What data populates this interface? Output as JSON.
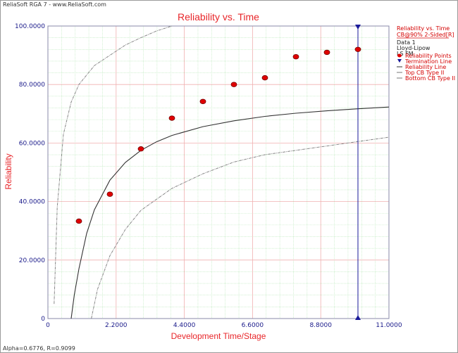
{
  "window": {
    "app_title": "ReliaSoft RGA 7 - www.ReliaSoft.com",
    "footer": "Alpha=0.6776, R=0.9099"
  },
  "legend": {
    "title": "Reliability vs. Time",
    "subtitle": "CB@90% 2-Sided[R]",
    "info": [
      "Data 1",
      "Lloyd-Lipow",
      "LS FM"
    ],
    "entries": [
      {
        "label": "Reliability Points",
        "symbol": "dot",
        "color": "#e00000"
      },
      {
        "label": "Termination Line",
        "symbol": "triangle",
        "color": "#1a1a9a"
      },
      {
        "label": "Reliability Line",
        "symbol": "line",
        "color": "#333333"
      },
      {
        "label": "Top CB Type II",
        "symbol": "line",
        "color": "#777777"
      },
      {
        "label": "Bottom CB Type II",
        "symbol": "line",
        "color": "#777777"
      }
    ]
  },
  "colors": {
    "title": "#e8262a",
    "tick_text": "#1a1a8a",
    "axis": "#1a1a8a",
    "grid_major": "#f0b0b0",
    "grid_minor": "#b8e8b8",
    "points": "#e00000",
    "termination": "#1a1a9a",
    "reliability_line": "#333333",
    "cb_lines": "#888888"
  },
  "chart_data": {
    "type": "scatter",
    "title": "Reliability vs. Time",
    "xlabel": "Development Time/Stage",
    "ylabel": "Reliability",
    "xlim": [
      0,
      11
    ],
    "ylim": [
      0,
      100
    ],
    "xticks": [
      "0",
      "2.2000",
      "4.4000",
      "6.6000",
      "8.8000",
      "11.0000"
    ],
    "yticks": [
      "0",
      "20.0000",
      "40.0000",
      "60.0000",
      "80.0000",
      "100.0000"
    ],
    "grid": true,
    "legend_position": "top-right",
    "points": {
      "name": "Reliability Points",
      "x": [
        1,
        2,
        3,
        4,
        5,
        6,
        7,
        8,
        9,
        10
      ],
      "y": [
        33.3,
        42.5,
        58.0,
        68.5,
        74.2,
        80.0,
        82.3,
        89.5,
        91.0,
        92.0
      ]
    },
    "termination_line": {
      "name": "Termination Line",
      "x": 10
    },
    "reliability_line": {
      "name": "Reliability Line",
      "x": [
        0.75,
        0.85,
        1.0,
        1.25,
        1.5,
        2.0,
        2.5,
        3.0,
        3.5,
        4.0,
        5.0,
        6.0,
        7.0,
        8.0,
        9.0,
        10.0,
        11.0
      ],
      "y": [
        0,
        8.0,
        17.0,
        29.1,
        37.2,
        47.3,
        53.4,
        57.5,
        60.4,
        62.6,
        65.6,
        67.6,
        69.1,
        70.2,
        71.0,
        71.7,
        72.3
      ]
    },
    "top_cb": {
      "name": "Top CB Type II",
      "x": [
        0.2,
        0.3,
        0.5,
        0.75,
        1.0,
        1.5,
        2.0,
        2.5,
        3.0,
        3.5,
        4.0
      ],
      "y": [
        5.0,
        38.0,
        63.0,
        74.0,
        80.0,
        86.5,
        90.0,
        93.5,
        96.0,
        98.3,
        100.0
      ]
    },
    "bottom_cb": {
      "name": "Bottom CB Type II",
      "x": [
        1.4,
        1.6,
        2.0,
        2.5,
        3.0,
        4.0,
        5.0,
        6.0,
        7.0,
        8.0,
        9.0,
        10.0,
        11.0
      ],
      "y": [
        0,
        10.0,
        21.5,
        30.5,
        37.0,
        44.5,
        49.5,
        53.5,
        56.0,
        57.5,
        59.0,
        60.5,
        62.0
      ]
    }
  }
}
